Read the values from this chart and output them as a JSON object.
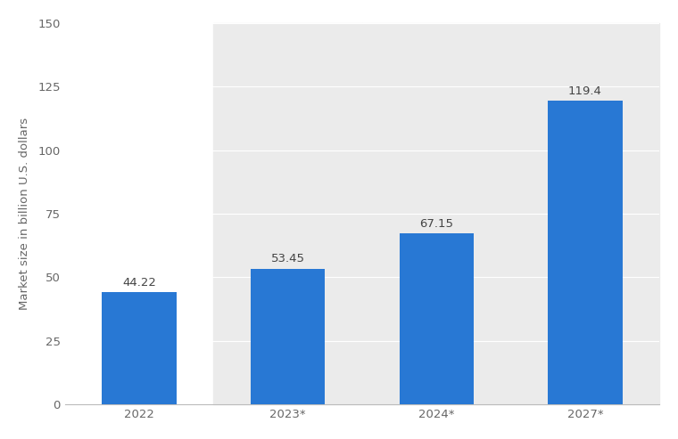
{
  "categories": [
    "2022",
    "2023*",
    "2024*",
    "2027*"
  ],
  "values": [
    44.22,
    53.45,
    67.15,
    119.4
  ],
  "bar_color": "#2878d4",
  "bar_labels": [
    "44.22",
    "53.45",
    "67.15",
    "119.4"
  ],
  "ylabel": "Market size in billion U.S. dollars",
  "ylim": [
    0,
    150
  ],
  "yticks": [
    0,
    25,
    50,
    75,
    100,
    125,
    150
  ],
  "background_color": "#ffffff",
  "plot_bg_color": "#ebebeb",
  "label_fontsize": 9.5,
  "tick_fontsize": 9.5,
  "ylabel_fontsize": 9.5,
  "bar_width": 0.5,
  "label_color": "#444444",
  "tick_color": "#666666",
  "spine_color": "#bbbbbb",
  "grid_color": "#ffffff",
  "shaded_cols": [
    1,
    2,
    3
  ]
}
